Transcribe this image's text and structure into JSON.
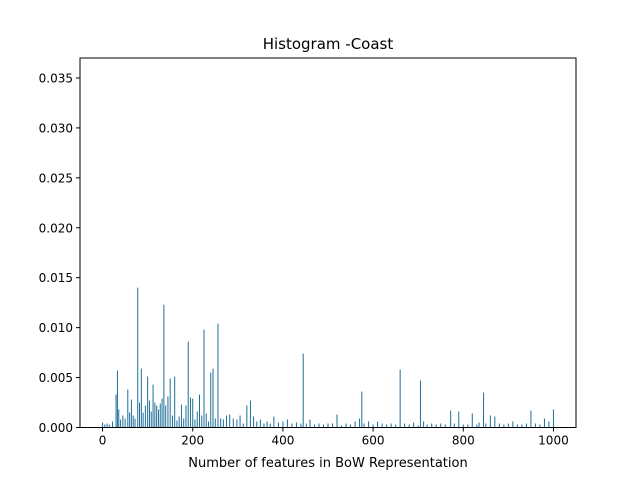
{
  "chart_data": {
    "type": "bar",
    "title": "Histogram -Coast",
    "xlabel": "Number of features in BoW Representation",
    "ylabel": "",
    "xlim": [
      -50,
      1050
    ],
    "ylim": [
      0,
      0.037
    ],
    "xticks": [
      0,
      200,
      400,
      600,
      800,
      1000
    ],
    "yticks": [
      0.0,
      0.005,
      0.01,
      0.015,
      0.02,
      0.025,
      0.03,
      0.035
    ],
    "xtick_labels": [
      "0",
      "200",
      "400",
      "600",
      "800",
      "1000"
    ],
    "ytick_labels": [
      "0.000",
      "0.005",
      "0.010",
      "0.015",
      "0.020",
      "0.025",
      "0.030",
      "0.035"
    ],
    "grid": false,
    "bar_color": "#1f6f9a",
    "x": [
      0,
      5,
      10,
      15,
      22,
      30,
      33,
      36,
      40,
      45,
      50,
      56,
      60,
      64,
      68,
      72,
      78,
      82,
      86,
      90,
      95,
      100,
      104,
      108,
      112,
      116,
      120,
      124,
      128,
      132,
      136,
      140,
      145,
      150,
      155,
      160,
      165,
      170,
      175,
      180,
      185,
      190,
      195,
      200,
      205,
      210,
      215,
      220,
      225,
      230,
      235,
      240,
      245,
      250,
      256,
      262,
      268,
      275,
      282,
      290,
      298,
      305,
      312,
      320,
      328,
      335,
      342,
      350,
      358,
      365,
      372,
      380,
      390,
      400,
      410,
      420,
      430,
      440,
      445,
      452,
      460,
      470,
      480,
      490,
      500,
      510,
      520,
      530,
      540,
      550,
      560,
      570,
      575,
      580,
      590,
      600,
      610,
      620,
      630,
      640,
      650,
      660,
      670,
      680,
      690,
      700,
      705,
      712,
      720,
      730,
      740,
      750,
      760,
      772,
      780,
      790,
      800,
      810,
      820,
      830,
      835,
      845,
      850,
      860,
      870,
      880,
      890,
      900,
      910,
      920,
      930,
      940,
      950,
      960,
      970,
      980,
      990,
      1000
    ],
    "values": [
      0.0005,
      0.0003,
      0.0004,
      0.0003,
      0.0006,
      0.0033,
      0.0057,
      0.0018,
      0.0008,
      0.0012,
      0.0009,
      0.0038,
      0.0015,
      0.0028,
      0.0012,
      0.0009,
      0.014,
      0.0025,
      0.0059,
      0.0015,
      0.0022,
      0.0051,
      0.0027,
      0.0016,
      0.0043,
      0.0025,
      0.0022,
      0.0018,
      0.0024,
      0.0029,
      0.0123,
      0.0022,
      0.0031,
      0.0049,
      0.0012,
      0.0051,
      0.0007,
      0.0011,
      0.0023,
      0.0009,
      0.0022,
      0.0086,
      0.003,
      0.0029,
      0.0008,
      0.0016,
      0.0033,
      0.0012,
      0.0098,
      0.0014,
      0.0006,
      0.0055,
      0.0059,
      0.0009,
      0.0104,
      0.0009,
      0.0008,
      0.0012,
      0.0013,
      0.0009,
      0.0008,
      0.0012,
      0.0004,
      0.0022,
      0.0027,
      0.0011,
      0.0006,
      0.0008,
      0.0004,
      0.0006,
      0.0004,
      0.0011,
      0.0005,
      0.0006,
      0.0008,
      0.0004,
      0.0005,
      0.0004,
      0.0074,
      0.0004,
      0.0008,
      0.0003,
      0.0004,
      0.0003,
      0.0004,
      0.0004,
      0.0013,
      0.0002,
      0.0004,
      0.0003,
      0.0006,
      0.0009,
      0.0036,
      0.0004,
      0.0006,
      0.0003,
      0.0006,
      0.0004,
      0.0003,
      0.0004,
      0.0003,
      0.0058,
      0.0004,
      0.0003,
      0.0005,
      0.0002,
      0.0047,
      0.0006,
      0.0003,
      0.0004,
      0.0003,
      0.0004,
      0.0003,
      0.0017,
      0.0004,
      0.0016,
      0.0003,
      0.0003,
      0.0014,
      0.0003,
      0.0005,
      0.0035,
      0.0004,
      0.0012,
      0.0011,
      0.0004,
      0.0003,
      0.0004,
      0.0006,
      0.0003,
      0.0003,
      0.0004,
      0.0017,
      0.0004,
      0.0003,
      0.0009,
      0.0006,
      0.0018
    ]
  }
}
